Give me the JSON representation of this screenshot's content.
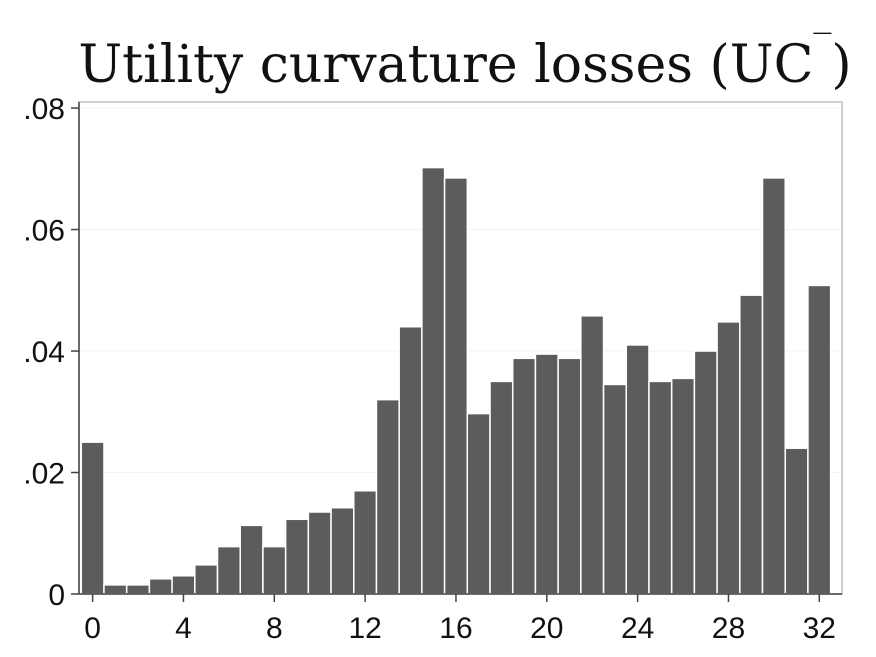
{
  "chart_data": {
    "type": "bar",
    "title": "Utility curvature losses (UC",
    "title_suffix": "‾",
    "title_close": ")",
    "xlabel": "",
    "ylabel": "",
    "x": [
      0,
      1,
      2,
      3,
      4,
      5,
      6,
      7,
      8,
      9,
      10,
      11,
      12,
      13,
      14,
      15,
      16,
      17,
      18,
      19,
      20,
      21,
      22,
      23,
      24,
      25,
      26,
      27,
      28,
      29,
      30,
      31,
      32
    ],
    "values": [
      0.025,
      0.0015,
      0.0015,
      0.0025,
      0.003,
      0.0048,
      0.0078,
      0.0113,
      0.0078,
      0.0123,
      0.0135,
      0.0142,
      0.017,
      0.032,
      0.044,
      0.0702,
      0.0685,
      0.0297,
      0.035,
      0.0388,
      0.0395,
      0.0388,
      0.0458,
      0.0345,
      0.041,
      0.035,
      0.0355,
      0.04,
      0.0448,
      0.0492,
      0.0685,
      0.024,
      0.0508
    ],
    "xlim": [
      -0.6,
      33.0
    ],
    "ylim": [
      0,
      0.081
    ],
    "xticks": [
      0,
      4,
      8,
      12,
      16,
      20,
      24,
      28,
      32
    ],
    "xtick_labels": [
      "0",
      "4",
      "8",
      "12",
      "16",
      "20",
      "24",
      "28",
      "32"
    ],
    "yticks": [
      0,
      0.02,
      0.04,
      0.06,
      0.08
    ],
    "ytick_labels": [
      "0",
      ".02",
      ".04",
      ".06",
      ".08"
    ],
    "grid": true,
    "colors": {
      "bar": "#5c5c5c",
      "bar_edge": "#ffffff",
      "frame": "#bdbdbd",
      "grid": "#f1f1f1"
    }
  }
}
